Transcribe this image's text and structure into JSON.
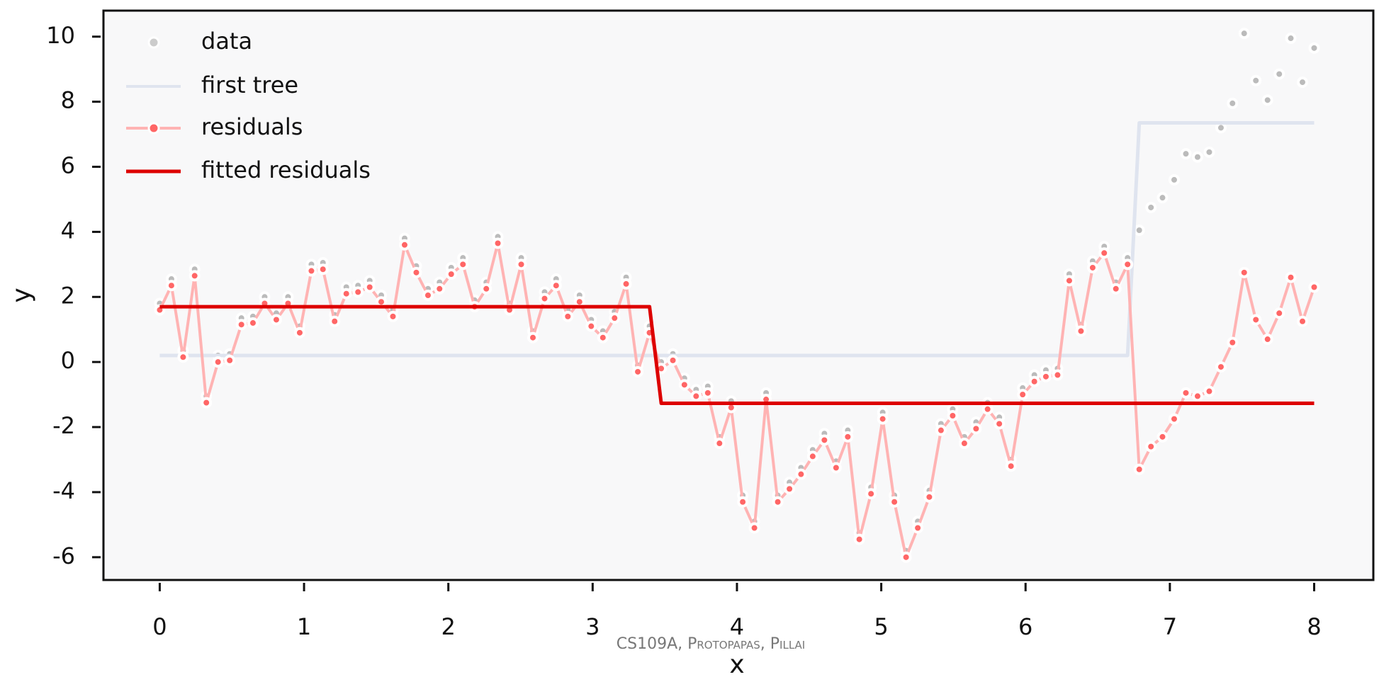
{
  "chart_data": {
    "type": "line",
    "x": [
      0,
      0.081,
      0.162,
      0.242,
      0.323,
      0.404,
      0.485,
      0.566,
      0.646,
      0.727,
      0.808,
      0.889,
      0.97,
      1.051,
      1.131,
      1.212,
      1.293,
      1.374,
      1.455,
      1.535,
      1.616,
      1.697,
      1.778,
      1.859,
      1.939,
      2.02,
      2.101,
      2.182,
      2.263,
      2.343,
      2.424,
      2.505,
      2.586,
      2.667,
      2.747,
      2.828,
      2.909,
      2.99,
      3.071,
      3.152,
      3.232,
      3.313,
      3.394,
      3.475,
      3.556,
      3.636,
      3.717,
      3.798,
      3.879,
      3.96,
      4.04,
      4.121,
      4.202,
      4.283,
      4.364,
      4.444,
      4.525,
      4.606,
      4.687,
      4.768,
      4.848,
      4.929,
      5.01,
      5.091,
      5.172,
      5.253,
      5.333,
      5.414,
      5.495,
      5.576,
      5.657,
      5.737,
      5.818,
      5.899,
      5.98,
      6.061,
      6.141,
      6.222,
      6.303,
      6.384,
      6.465,
      6.545,
      6.626,
      6.707,
      6.788,
      6.869,
      6.949,
      7.03,
      7.111,
      7.192,
      7.273,
      7.354,
      7.434,
      7.515,
      7.596,
      7.677,
      7.758,
      7.838,
      7.919,
      8.0
    ],
    "series": [
      {
        "name": "data",
        "color": "#bbbbbb",
        "mode": "markers",
        "values": [
          1.8,
          2.55,
          0.35,
          2.85,
          -1.05,
          0.2,
          0.25,
          1.35,
          1.4,
          2.0,
          1.5,
          2.0,
          1.1,
          3.0,
          3.05,
          1.45,
          2.3,
          2.35,
          2.5,
          2.05,
          1.6,
          3.8,
          2.95,
          2.25,
          2.45,
          2.9,
          3.2,
          1.9,
          2.45,
          3.85,
          1.8,
          3.2,
          0.95,
          2.15,
          2.55,
          1.6,
          2.05,
          1.3,
          0.95,
          1.55,
          2.6,
          -0.1,
          1.1,
          0.0,
          0.25,
          -0.5,
          -0.85,
          -0.75,
          -2.3,
          -1.2,
          -4.1,
          -4.9,
          -0.95,
          -4.1,
          -3.7,
          -3.25,
          -2.7,
          -2.2,
          -3.05,
          -2.1,
          -5.25,
          -3.85,
          -1.55,
          -4.1,
          -5.8,
          -4.9,
          -3.95,
          -1.9,
          -1.45,
          -2.3,
          -1.85,
          -1.25,
          -1.7,
          -3.0,
          -0.8,
          -0.4,
          -0.25,
          -0.2,
          2.7,
          1.15,
          3.1,
          3.55,
          2.45,
          3.2,
          4.05,
          4.75,
          5.05,
          5.6,
          6.4,
          6.3,
          6.45,
          7.2,
          7.95,
          10.1,
          8.65,
          8.05,
          8.85,
          9.95,
          8.6,
          9.65
        ]
      },
      {
        "name": "first tree",
        "color": "#dfe4ef",
        "mode": "line",
        "values": [
          0.2,
          0.2,
          0.2,
          0.2,
          0.2,
          0.2,
          0.2,
          0.2,
          0.2,
          0.2,
          0.2,
          0.2,
          0.2,
          0.2,
          0.2,
          0.2,
          0.2,
          0.2,
          0.2,
          0.2,
          0.2,
          0.2,
          0.2,
          0.2,
          0.2,
          0.2,
          0.2,
          0.2,
          0.2,
          0.2,
          0.2,
          0.2,
          0.2,
          0.2,
          0.2,
          0.2,
          0.2,
          0.2,
          0.2,
          0.2,
          0.2,
          0.2,
          0.2,
          0.2,
          0.2,
          0.2,
          0.2,
          0.2,
          0.2,
          0.2,
          0.2,
          0.2,
          0.2,
          0.2,
          0.2,
          0.2,
          0.2,
          0.2,
          0.2,
          0.2,
          0.2,
          0.2,
          0.2,
          0.2,
          0.2,
          0.2,
          0.2,
          0.2,
          0.2,
          0.2,
          0.2,
          0.2,
          0.2,
          0.2,
          0.2,
          0.2,
          0.2,
          0.2,
          0.2,
          0.2,
          0.2,
          0.2,
          0.2,
          0.2,
          7.35,
          7.35,
          7.35,
          7.35,
          7.35,
          7.35,
          7.35,
          7.35,
          7.35,
          7.35,
          7.35,
          7.35,
          7.35,
          7.35,
          7.35,
          7.35
        ]
      },
      {
        "name": "residuals",
        "color": "#ffb3b3",
        "marker_color": "#ff6666",
        "mode": "line+markers",
        "values": [
          1.6,
          2.35,
          0.15,
          2.65,
          -1.25,
          0.0,
          0.05,
          1.15,
          1.2,
          1.8,
          1.3,
          1.8,
          0.9,
          2.8,
          2.85,
          1.25,
          2.1,
          2.15,
          2.3,
          1.85,
          1.4,
          3.6,
          2.75,
          2.05,
          2.25,
          2.7,
          3.0,
          1.7,
          2.25,
          3.65,
          1.6,
          3.0,
          0.75,
          1.95,
          2.35,
          1.4,
          1.85,
          1.1,
          0.75,
          1.35,
          2.4,
          -0.3,
          0.9,
          -0.2,
          0.05,
          -0.7,
          -1.05,
          -0.95,
          -2.5,
          -1.4,
          -4.3,
          -5.1,
          -1.15,
          -4.3,
          -3.9,
          -3.45,
          -2.9,
          -2.4,
          -3.25,
          -2.3,
          -5.45,
          -4.05,
          -1.75,
          -4.3,
          -6.0,
          -5.1,
          -4.15,
          -2.1,
          -1.65,
          -2.5,
          -2.05,
          -1.45,
          -1.9,
          -3.2,
          -1.0,
          -0.6,
          -0.45,
          -0.4,
          2.5,
          0.95,
          2.9,
          3.35,
          2.25,
          3.0,
          -3.3,
          -2.6,
          -2.3,
          -1.75,
          -0.95,
          -1.05,
          -0.9,
          -0.15,
          0.6,
          2.75,
          1.3,
          0.7,
          1.5,
          2.6,
          1.25,
          2.3
        ]
      },
      {
        "name": "fitted residuals",
        "color": "#dd0000",
        "mode": "line",
        "values": [
          1.7,
          1.7,
          1.7,
          1.7,
          1.7,
          1.7,
          1.7,
          1.7,
          1.7,
          1.7,
          1.7,
          1.7,
          1.7,
          1.7,
          1.7,
          1.7,
          1.7,
          1.7,
          1.7,
          1.7,
          1.7,
          1.7,
          1.7,
          1.7,
          1.7,
          1.7,
          1.7,
          1.7,
          1.7,
          1.7,
          1.7,
          1.7,
          1.7,
          1.7,
          1.7,
          1.7,
          1.7,
          1.7,
          1.7,
          1.7,
          1.7,
          1.7,
          1.7,
          -1.27,
          -1.27,
          -1.27,
          -1.27,
          -1.27,
          -1.27,
          -1.27,
          -1.27,
          -1.27,
          -1.27,
          -1.27,
          -1.27,
          -1.27,
          -1.27,
          -1.27,
          -1.27,
          -1.27,
          -1.27,
          -1.27,
          -1.27,
          -1.27,
          -1.27,
          -1.27,
          -1.27,
          -1.27,
          -1.27,
          -1.27,
          -1.27,
          -1.27,
          -1.27,
          -1.27,
          -1.27,
          -1.27,
          -1.27,
          -1.27,
          -1.27,
          -1.27,
          -1.27,
          -1.27,
          -1.27,
          -1.27,
          -1.27,
          -1.27,
          -1.27,
          -1.27,
          -1.27,
          -1.27,
          -1.27,
          -1.27,
          -1.27,
          -1.27,
          -1.27,
          -1.27,
          -1.27,
          -1.27,
          -1.27,
          -1.27
        ]
      }
    ],
    "xlabel": "x",
    "ylabel": "y",
    "xlim": [
      -0.39,
      8.41
    ],
    "ylim": [
      -6.7,
      10.8
    ],
    "xticks": [
      0,
      1,
      2,
      3,
      4,
      5,
      6,
      7,
      8
    ],
    "yticks": [
      -6,
      -4,
      -2,
      0,
      2,
      4,
      6,
      8,
      10
    ],
    "grid": false,
    "legend": "upper left",
    "footer": "CS109A, Protopapas, Pillai"
  }
}
